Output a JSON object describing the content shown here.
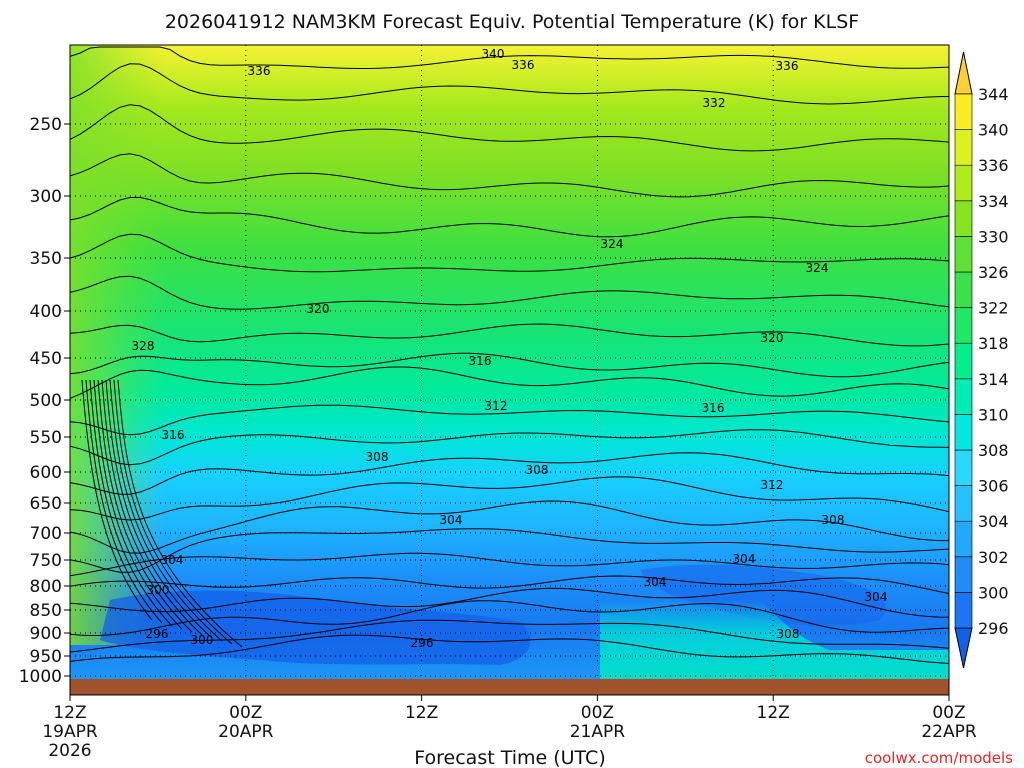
{
  "chart_data": {
    "type": "heatmap",
    "title": "2026041912 NAM3KM Forecast Equiv. Potential Temperature (K) for KLSF",
    "xlabel": "Forecast Time (UTC)",
    "ylabel": "",
    "credit": "coolwx.com/models",
    "x_ticks": [
      {
        "hours": 0,
        "hour": "12Z",
        "date": "19APR",
        "year": "2026"
      },
      {
        "hours": 12,
        "hour": "00Z",
        "date": "20APR"
      },
      {
        "hours": 24,
        "hour": "12Z",
        "date": ""
      },
      {
        "hours": 36,
        "hour": "00Z",
        "date": "21APR"
      },
      {
        "hours": 48,
        "hour": "12Z",
        "date": ""
      },
      {
        "hours": 60,
        "hour": "00Z",
        "date": "22APR"
      }
    ],
    "xlim": [
      0,
      60
    ],
    "y_ticks": [
      250,
      300,
      350,
      400,
      450,
      500,
      550,
      600,
      650,
      700,
      750,
      800,
      850,
      900,
      950,
      1000
    ],
    "ylim_hpa": [
      200,
      1020
    ],
    "colorbar": {
      "labels": [
        296,
        300,
        302,
        304,
        306,
        308,
        310,
        314,
        318,
        322,
        326,
        330,
        334,
        336,
        340,
        344
      ],
      "colors": [
        "#1060e8",
        "#1d74f4",
        "#1f8cf9",
        "#22a8ff",
        "#26c2ff",
        "#2ad8ff",
        "#00e8e0",
        "#00eeb4",
        "#00ee8c",
        "#1ee864",
        "#3ae24a",
        "#5ee034",
        "#86e41e",
        "#b0ec1a",
        "#dcf21e",
        "#f8ee20",
        "#ffd030"
      ]
    },
    "theta_e_samples": [
      {
        "pressure": 225,
        "values": [
          338,
          334,
          333,
          333,
          333,
          333,
          334
        ]
      },
      {
        "pressure": 300,
        "values": [
          330,
          330,
          328,
          327,
          328,
          328,
          329
        ]
      },
      {
        "pressure": 400,
        "values": [
          330,
          322,
          320,
          321,
          321,
          322,
          322
        ]
      },
      {
        "pressure": 500,
        "values": [
          328,
          317,
          314,
          313,
          314,
          315,
          316
        ]
      },
      {
        "pressure": 600,
        "values": [
          324,
          313,
          310,
          308,
          308,
          310,
          311
        ]
      },
      {
        "pressure": 700,
        "values": [
          318,
          308,
          306,
          305,
          306,
          306,
          308
        ]
      },
      {
        "pressure": 800,
        "values": [
          314,
          302,
          301,
          302,
          303,
          302,
          305
        ]
      },
      {
        "pressure": 900,
        "values": [
          309,
          297,
          296,
          300,
          306,
          303,
          304
        ]
      },
      {
        "pressure": 1000,
        "values": [
          306,
          300,
          300,
          304,
          308,
          306,
          307
        ]
      }
    ],
    "sample_hours": [
      0,
      10,
      20,
      30,
      40,
      50,
      60
    ],
    "contour_labels": [
      "340",
      "336",
      "336",
      "336",
      "332",
      "328",
      "324",
      "324",
      "320",
      "320",
      "316",
      "316",
      "316",
      "312",
      "312",
      "308",
      "308",
      "308",
      "304",
      "304",
      "304",
      "304",
      "304",
      "300",
      "300",
      "296",
      "296",
      "308"
    ],
    "ground_color": "#a0522d"
  }
}
